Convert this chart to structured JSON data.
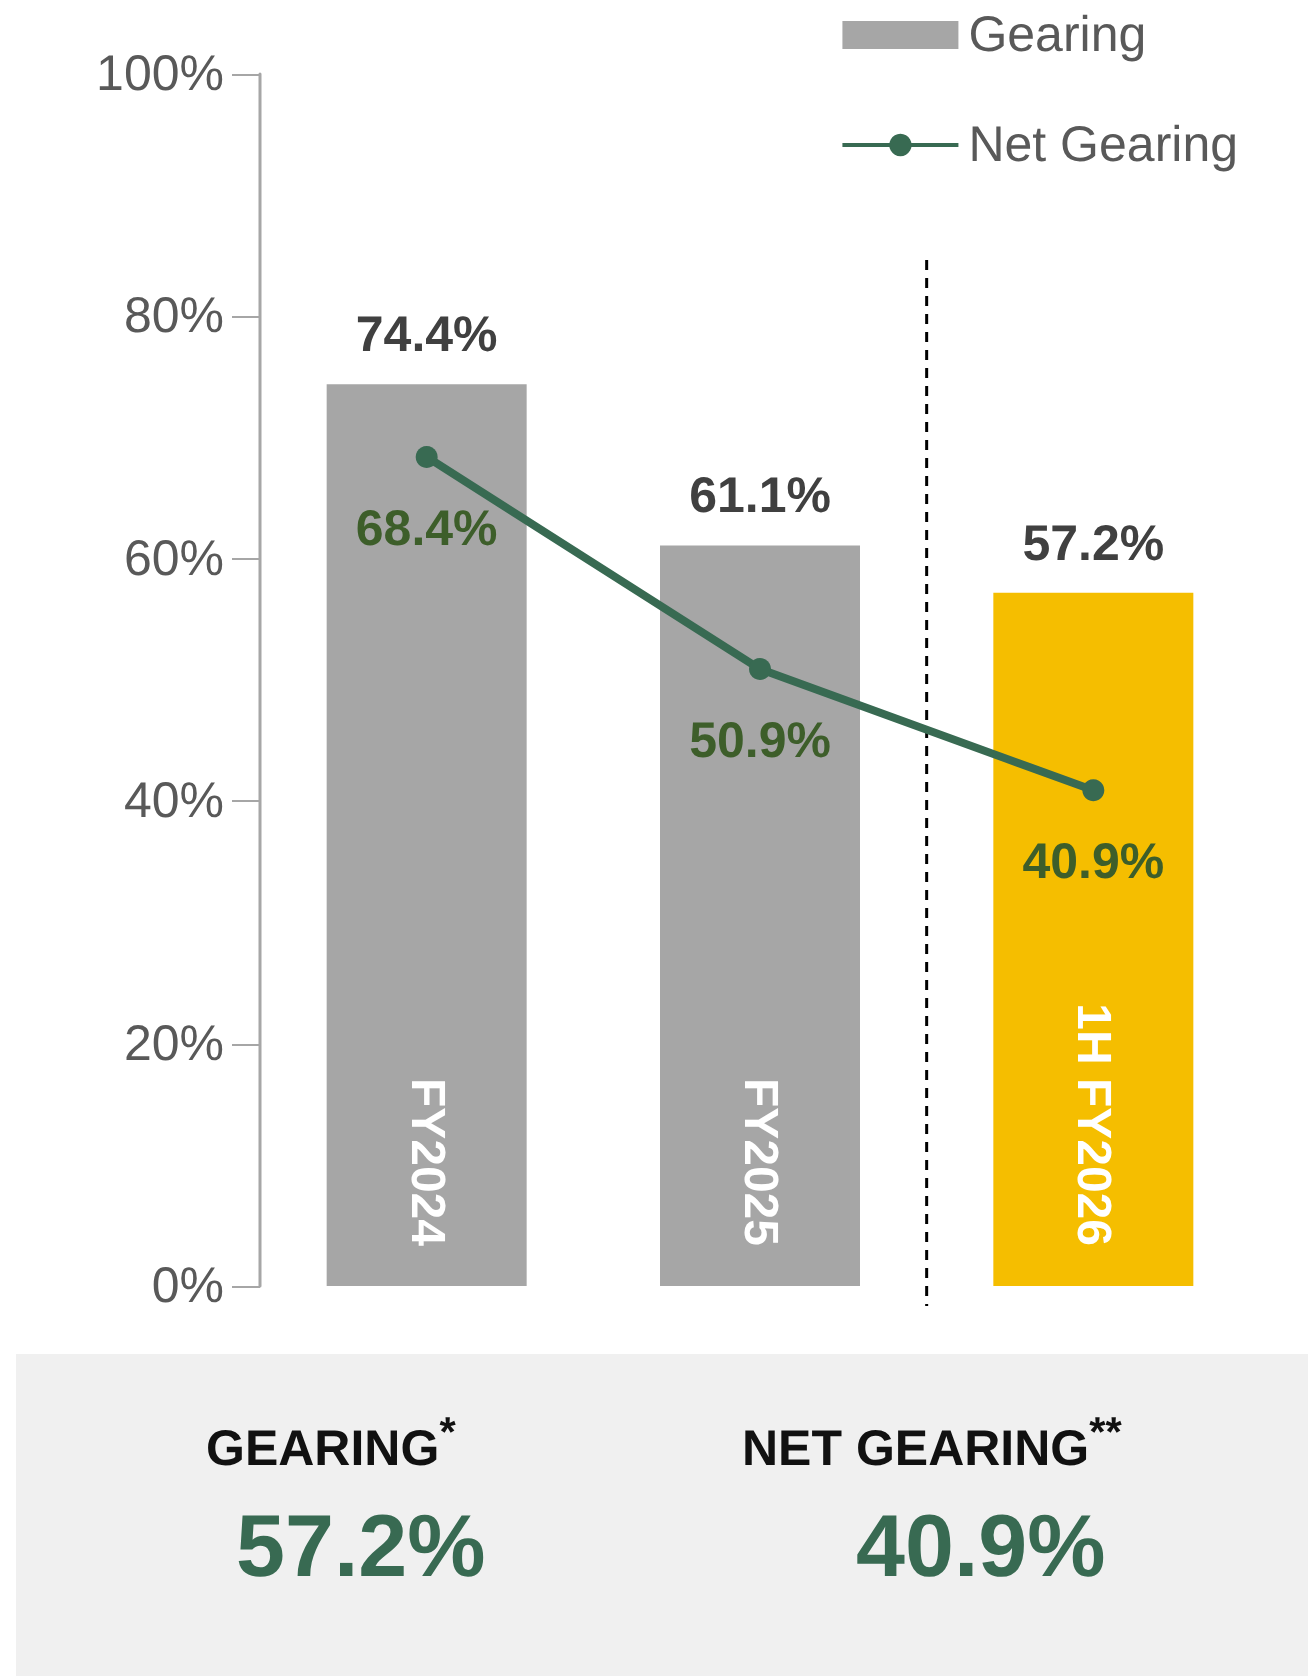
{
  "chart_data": {
    "type": "bar",
    "categories": [
      "FY2024",
      "FY2025",
      "1H FY2026"
    ],
    "series": [
      {
        "name": "Gearing",
        "color": "#a6a6a6",
        "colors": [
          "#a6a6a6",
          "#a6a6a6",
          "#f5be00"
        ],
        "values": [
          74.4,
          61.1,
          57.2
        ],
        "value_labels": [
          "74.4%",
          "61.1%",
          "57.2%"
        ]
      },
      {
        "name": "Net Gearing",
        "type": "line",
        "color": "#386a52",
        "values": [
          68.4,
          50.9,
          40.9
        ],
        "value_labels": [
          "68.4%",
          "50.9%",
          "40.9%"
        ]
      }
    ],
    "ylim": [
      0,
      100
    ],
    "yticks": [
      {
        "value": 0,
        "label": "0%"
      },
      {
        "value": 20,
        "label": "20%"
      },
      {
        "value": 40,
        "label": "40%"
      },
      {
        "value": 60,
        "label": "60%"
      },
      {
        "value": 80,
        "label": "80%"
      },
      {
        "value": 100,
        "label": "100%"
      }
    ],
    "grid": false,
    "legend": "top right",
    "marker": "circle",
    "line_style": "solid",
    "annotations": [
      "GEARING$^{*}$",
      "57.2%",
      "NET GEARING$^{**}$",
      "40.9%"
    ]
  }
}
